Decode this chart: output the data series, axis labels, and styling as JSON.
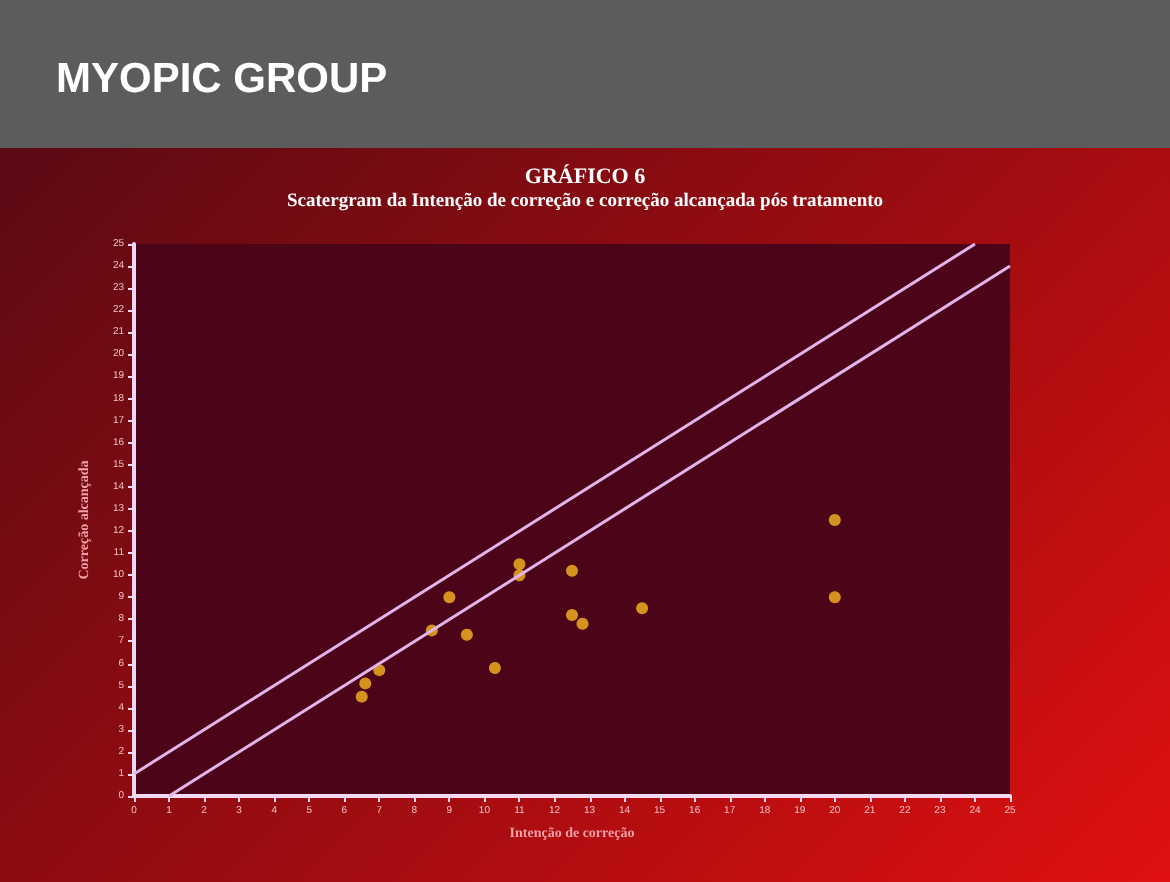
{
  "chart_data": {
    "type": "scatter",
    "title": "GRÁFICO 6",
    "subtitle": "Scatergram da Intenção de correção e correção alcançada pós tratamento",
    "xlabel": "Intenção de correção",
    "ylabel": "Correção alcançada",
    "annotations": [
      "MYOPIC GROUP"
    ],
    "x": [
      6.5,
      6.6,
      7,
      8.5,
      9,
      9.5,
      10.3,
      11,
      11,
      12.5,
      12.5,
      12.8,
      14.5,
      20,
      20
    ],
    "series": [
      {
        "color": "#f5b820",
        "values": [
          4.5,
          5.1,
          5.7,
          7.5,
          9,
          7.3,
          5.8,
          10.5,
          10,
          10.2,
          8.2,
          7.8,
          8.5,
          12.5,
          9
        ]
      },
      {
        "type": "line",
        "marker": "none",
        "color": "#e2b4ec",
        "x": [
          0,
          24
        ],
        "values": [
          1,
          25
        ]
      },
      {
        "type": "line",
        "marker": "none",
        "color": "#e2b4ec",
        "x": [
          1,
          25
        ],
        "values": [
          0,
          24
        ]
      }
    ],
    "xlim": [
      0,
      25
    ],
    "ylim": [
      0,
      25
    ],
    "xticks": [
      0,
      1,
      2,
      3,
      4,
      5,
      6,
      7,
      8,
      9,
      10,
      11,
      12,
      13,
      14,
      15,
      16,
      17,
      18,
      19,
      20,
      21,
      22,
      23,
      24,
      25
    ],
    "yticks": [
      0,
      1,
      2,
      3,
      4,
      5,
      6,
      7,
      8,
      9,
      10,
      11,
      12,
      13,
      14,
      15,
      16,
      17,
      18,
      19,
      20,
      21,
      22,
      23,
      24,
      25
    ],
    "marker": "circle",
    "grid": false
  }
}
